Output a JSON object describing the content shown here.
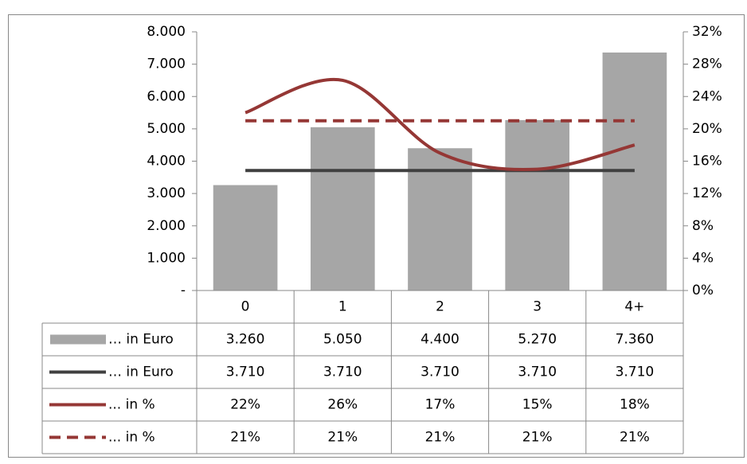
{
  "chart_data": {
    "type": "bar-line-table",
    "categories": [
      "0",
      "1",
      "2",
      "3",
      "4+"
    ],
    "ylim": [
      0,
      8000
    ],
    "yticks": [
      {
        "value": 0,
        "label": "-"
      },
      {
        "value": 1000,
        "label": "1.000"
      },
      {
        "value": 2000,
        "label": "2.000"
      },
      {
        "value": 3000,
        "label": "3.000"
      },
      {
        "value": 4000,
        "label": "4.000"
      },
      {
        "value": 5000,
        "label": "5.000"
      },
      {
        "value": 6000,
        "label": "6.000"
      },
      {
        "value": 7000,
        "label": "7.000"
      },
      {
        "value": 8000,
        "label": "8.000"
      }
    ],
    "y2lim": [
      0,
      32
    ],
    "y2ticks": [
      {
        "value": 0,
        "label": "0%"
      },
      {
        "value": 4,
        "label": "4%"
      },
      {
        "value": 8,
        "label": "8%"
      },
      {
        "value": 12,
        "label": "12%"
      },
      {
        "value": 16,
        "label": "16%"
      },
      {
        "value": 20,
        "label": "20%"
      },
      {
        "value": 24,
        "label": "24%"
      },
      {
        "value": 28,
        "label": "28%"
      },
      {
        "value": 32,
        "label": "32%"
      }
    ],
    "series": [
      {
        "name": "… in Euro",
        "type": "bar",
        "color": "#a6a6a6",
        "values": [
          3260,
          5050,
          4400,
          5270,
          7360
        ],
        "value_labels": [
          "3.260",
          "5.050",
          "4.400",
          "5.270",
          "7.360"
        ]
      },
      {
        "name": "… in Euro",
        "type": "line",
        "color": "#404040",
        "values": [
          3710,
          3710,
          3710,
          3710,
          3710
        ],
        "value_labels": [
          "3.710",
          "3.710",
          "3.710",
          "3.710",
          "3.710"
        ]
      },
      {
        "name": "... in %",
        "type": "smooth",
        "axis": "y2",
        "color": "#953735",
        "values": [
          22,
          26,
          17,
          15,
          18
        ],
        "value_labels": [
          "22%",
          "26%",
          "17%",
          "15%",
          "18%"
        ]
      },
      {
        "name": "... in %",
        "type": "dashed",
        "axis": "y2",
        "color": "#953735",
        "values": [
          21,
          21,
          21,
          21,
          21
        ],
        "value_labels": [
          "21%",
          "21%",
          "21%",
          "21%",
          "21%"
        ]
      }
    ]
  }
}
